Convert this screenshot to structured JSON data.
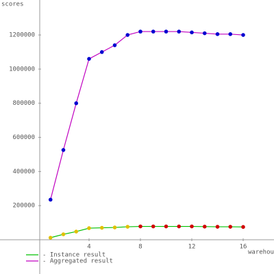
{
  "chart_data": {
    "type": "line",
    "y_label": "scores",
    "x_label": "warehouses",
    "x": [
      1,
      2,
      3,
      4,
      5,
      6,
      7,
      8,
      9,
      10,
      11,
      12,
      13,
      14,
      15,
      16
    ],
    "series": [
      {
        "name": "- Instance result",
        "color": "#00c000",
        "marker_colors": [
          "#e0c000",
          "#e0c000",
          "#e0c000",
          "#e0c000",
          "#e0c000",
          "#e0c000",
          "#e0c000",
          "#d00000",
          "#d00000",
          "#d00000",
          "#d00000",
          "#d00000",
          "#d00000",
          "#d00000",
          "#d00000",
          "#d00000"
        ],
        "values": [
          12000,
          32000,
          48000,
          68000,
          70000,
          72000,
          76000,
          78000,
          78000,
          78000,
          78000,
          78000,
          77000,
          76000,
          76000,
          75000
        ]
      },
      {
        "name": "- Aggregated result",
        "color": "#c000c0",
        "marker_colors": [
          "#0000d0",
          "#0000d0",
          "#0000d0",
          "#0000d0",
          "#0000d0",
          "#0000d0",
          "#0000d0",
          "#0000d0",
          "#0000d0",
          "#0000d0",
          "#0000d0",
          "#0000d0",
          "#0000d0",
          "#0000d0",
          "#0000d0",
          "#0000d0"
        ],
        "values": [
          235000,
          526000,
          800000,
          1060000,
          1100000,
          1140000,
          1200000,
          1220000,
          1220000,
          1220000,
          1220000,
          1215000,
          1210000,
          1205000,
          1205000,
          1200000
        ]
      }
    ],
    "xlim": [
      0,
      18.4
    ],
    "ylim": [
      0,
      1405000
    ],
    "xticks": [
      4,
      8,
      12,
      16
    ],
    "yticks": [
      200000,
      400000,
      600000,
      800000,
      1000000,
      1200000
    ]
  }
}
